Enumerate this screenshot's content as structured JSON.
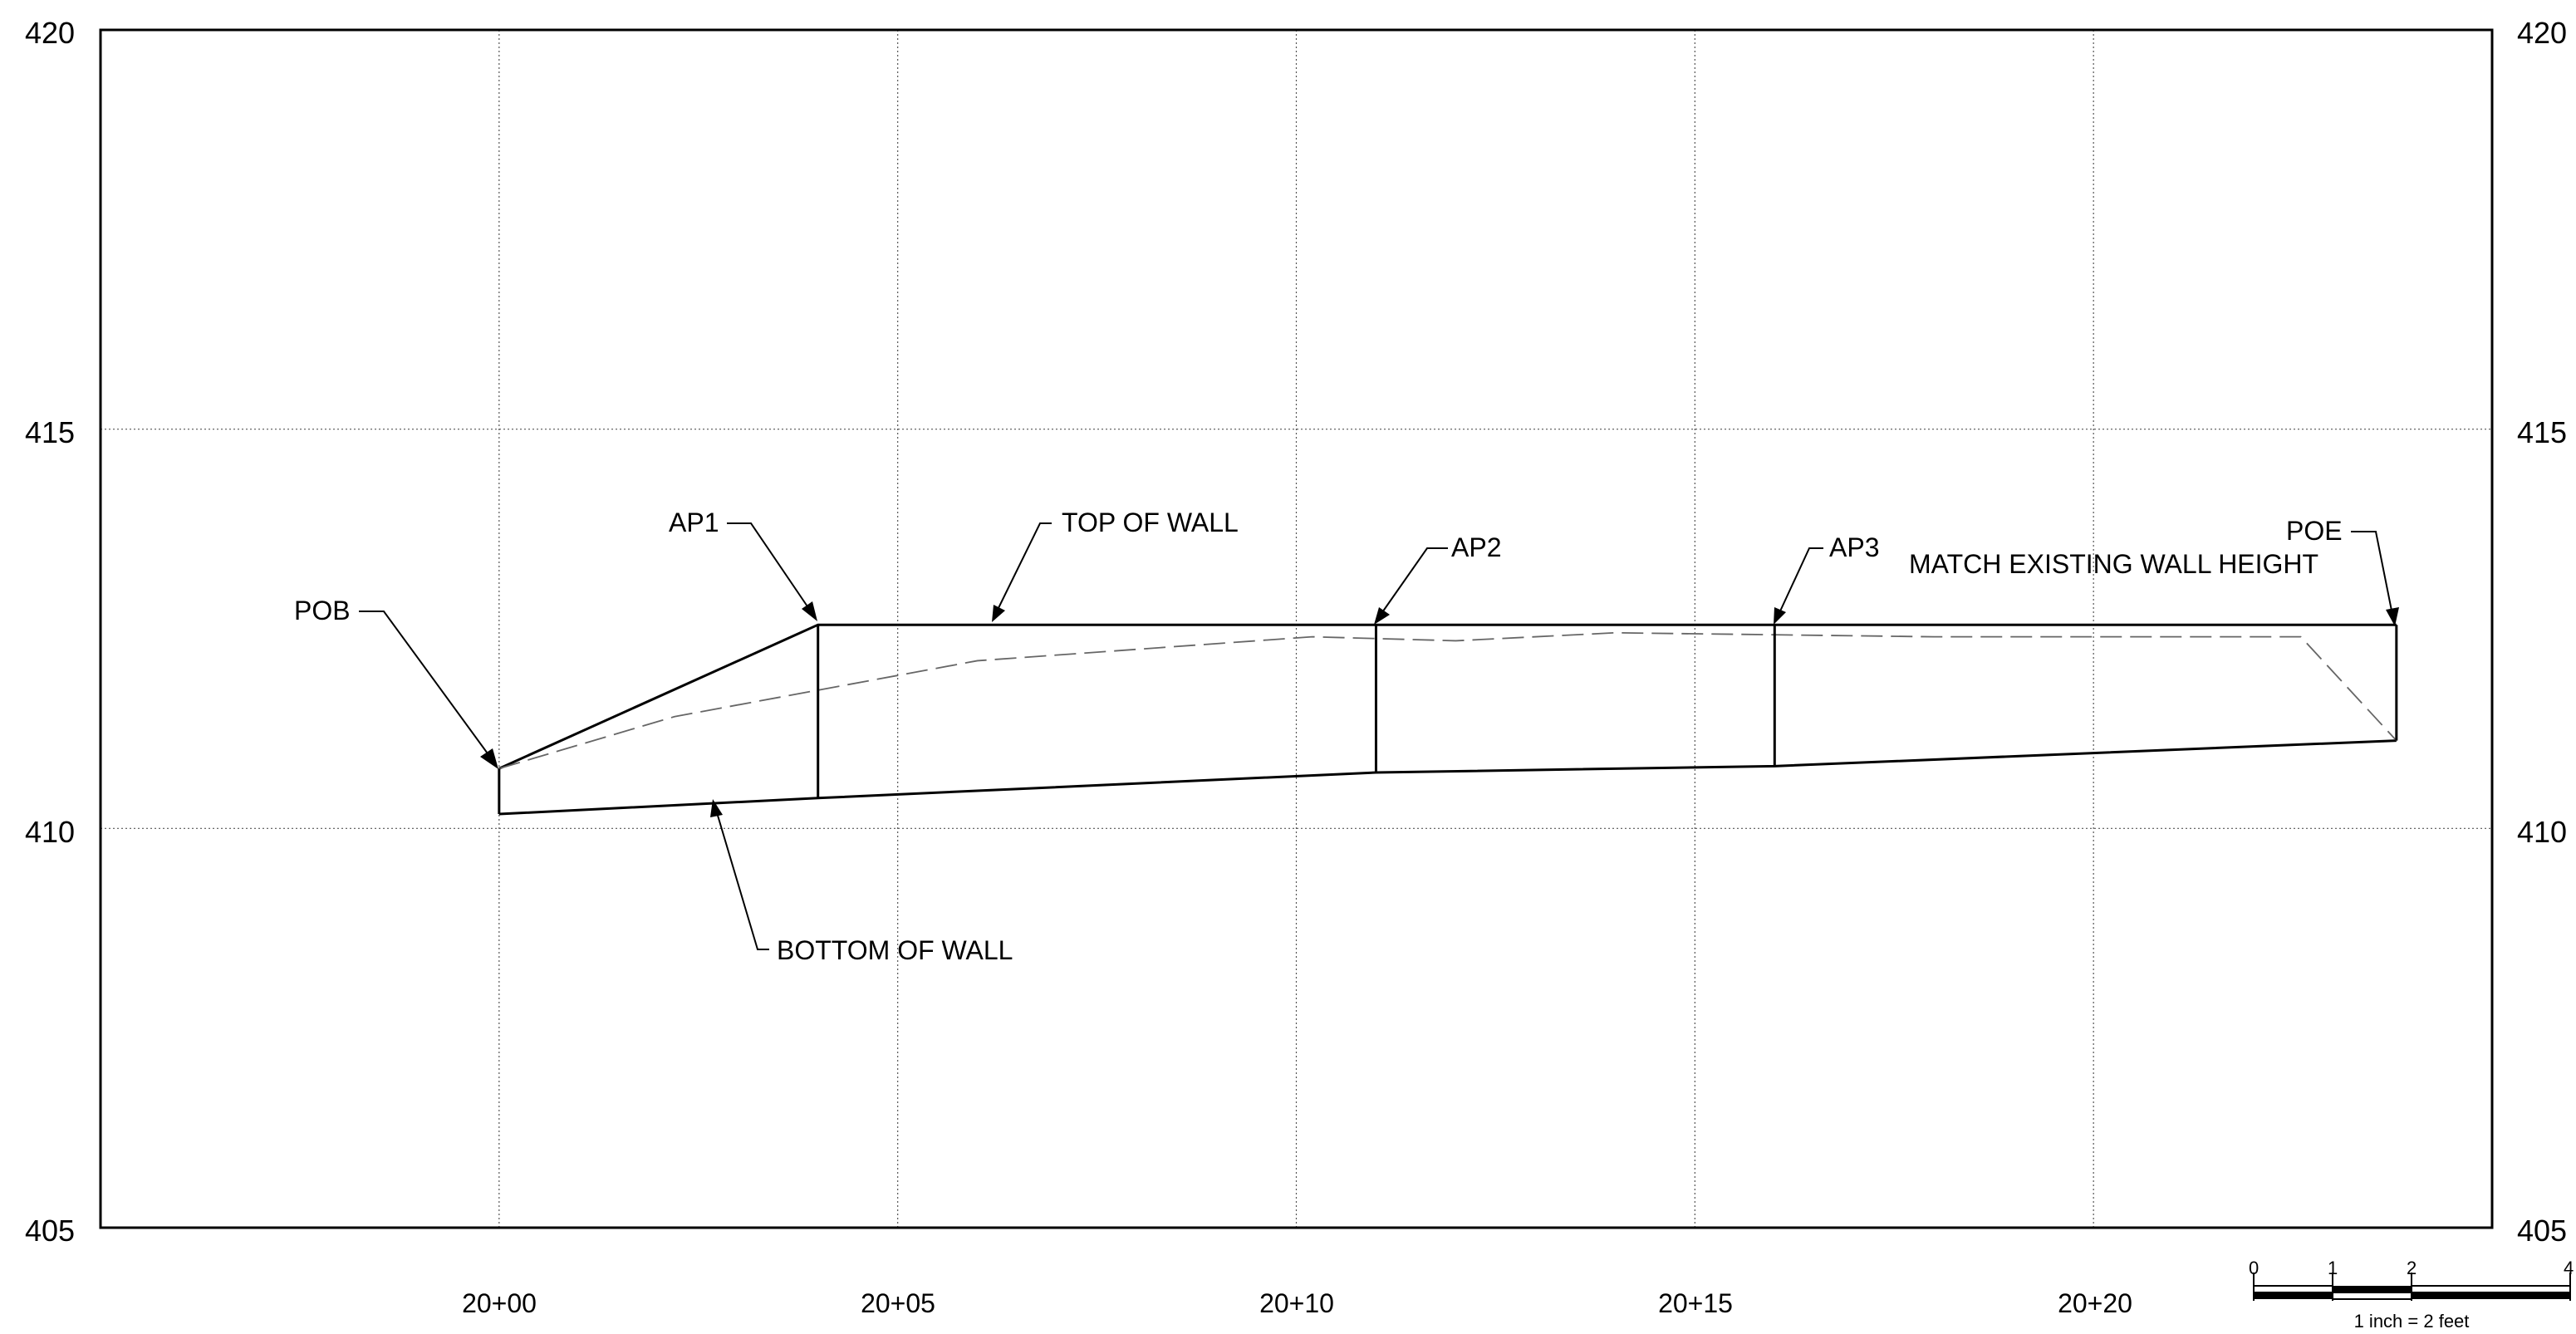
{
  "chart_data": {
    "type": "line",
    "x_label_format": "station",
    "x_ticks": [
      "20+00",
      "20+05",
      "20+10",
      "20+15",
      "20+20"
    ],
    "y_ticks_left": [
      "405",
      "410",
      "415",
      "420"
    ],
    "y_ticks_right": [
      "405",
      "410",
      "415",
      "420"
    ],
    "xlim": [
      1995,
      2025
    ],
    "ylim": [
      405,
      420
    ],
    "grid": true,
    "series": [
      {
        "key": "top_of_wall",
        "style": "solid",
        "points": [
          [
            2000.0,
            410.75
          ],
          [
            2004.0,
            412.55
          ],
          [
            2011.0,
            412.55
          ],
          [
            2016.0,
            412.55
          ],
          [
            2023.8,
            412.55
          ]
        ]
      },
      {
        "key": "bottom_of_wall",
        "style": "solid",
        "points": [
          [
            2000.0,
            410.18
          ],
          [
            2004.0,
            410.38
          ],
          [
            2011.0,
            410.7
          ],
          [
            2016.0,
            410.78
          ],
          [
            2023.8,
            411.1
          ]
        ]
      },
      {
        "key": "existing_ground",
        "style": "dashed",
        "points": [
          [
            2000.0,
            410.75
          ],
          [
            2002.2,
            411.4
          ],
          [
            2006.0,
            412.1
          ],
          [
            2010.2,
            412.4
          ],
          [
            2012.0,
            412.35
          ],
          [
            2014.0,
            412.45
          ],
          [
            2018.0,
            412.4
          ],
          [
            2022.6,
            412.4
          ],
          [
            2023.8,
            411.1
          ]
        ]
      }
    ],
    "verticals": [
      {
        "x": 2000.0,
        "y0": 410.18,
        "y1": 410.75
      },
      {
        "x": 2004.0,
        "y0": 410.38,
        "y1": 412.55
      },
      {
        "x": 2011.0,
        "y0": 410.7,
        "y1": 412.55
      },
      {
        "x": 2016.0,
        "y0": 410.78,
        "y1": 412.55
      },
      {
        "x": 2023.8,
        "y0": 411.1,
        "y1": 412.55
      }
    ],
    "annotations": [
      {
        "text": "POB",
        "point": [
          2000.0,
          410.75
        ]
      },
      {
        "text": "AP1",
        "point": [
          2004.0,
          412.55
        ]
      },
      {
        "text": "TOP OF WALL",
        "point": [
          2006.2,
          412.55
        ]
      },
      {
        "text": "AP2",
        "point": [
          2011.0,
          412.55
        ]
      },
      {
        "text": "AP3",
        "point": [
          2016.0,
          412.55
        ]
      },
      {
        "text": "POE",
        "point": [
          2023.8,
          412.55
        ]
      },
      {
        "text": "MATCH EXISTING WALL HEIGHT",
        "point": null
      },
      {
        "text": "BOTTOM OF WALL",
        "point": [
          2002.7,
          410.28
        ]
      }
    ]
  },
  "scale_bar": {
    "ticks": [
      "0",
      "1",
      "2",
      "4"
    ],
    "caption": "1 inch = 2 feet"
  }
}
